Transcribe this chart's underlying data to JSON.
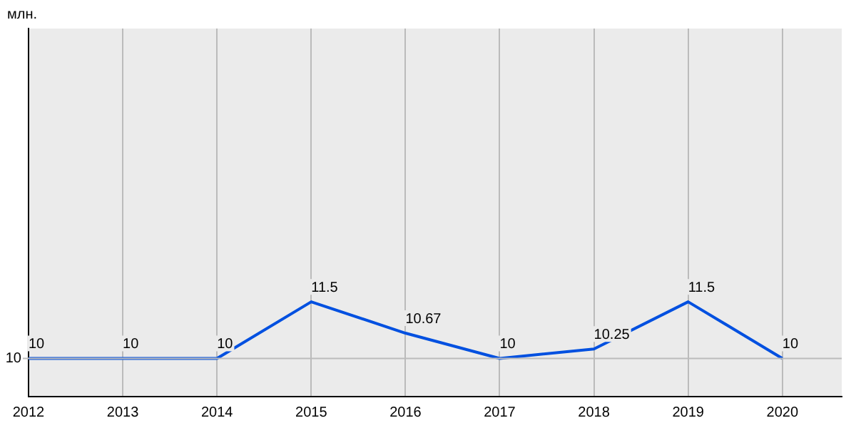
{
  "chart_data": {
    "type": "line",
    "x": [
      2012,
      2013,
      2014,
      2015,
      2016,
      2017,
      2018,
      2019,
      2020
    ],
    "series": [
      {
        "color": "#0050e0",
        "values": [
          10,
          10,
          10,
          11.5,
          10.67,
          10,
          10.25,
          11.5,
          10
        ]
      }
    ],
    "xlim": [
      2012,
      2020.63
    ],
    "xticks": [
      2012,
      2013,
      2014,
      2015,
      2016,
      2017,
      2018,
      2019,
      2020
    ],
    "annotations": [
      "10",
      "млн."
    ],
    "grid": true,
    "data_labels": true,
    "marker": "none",
    "line_style": "solid",
    "legend": false
  }
}
